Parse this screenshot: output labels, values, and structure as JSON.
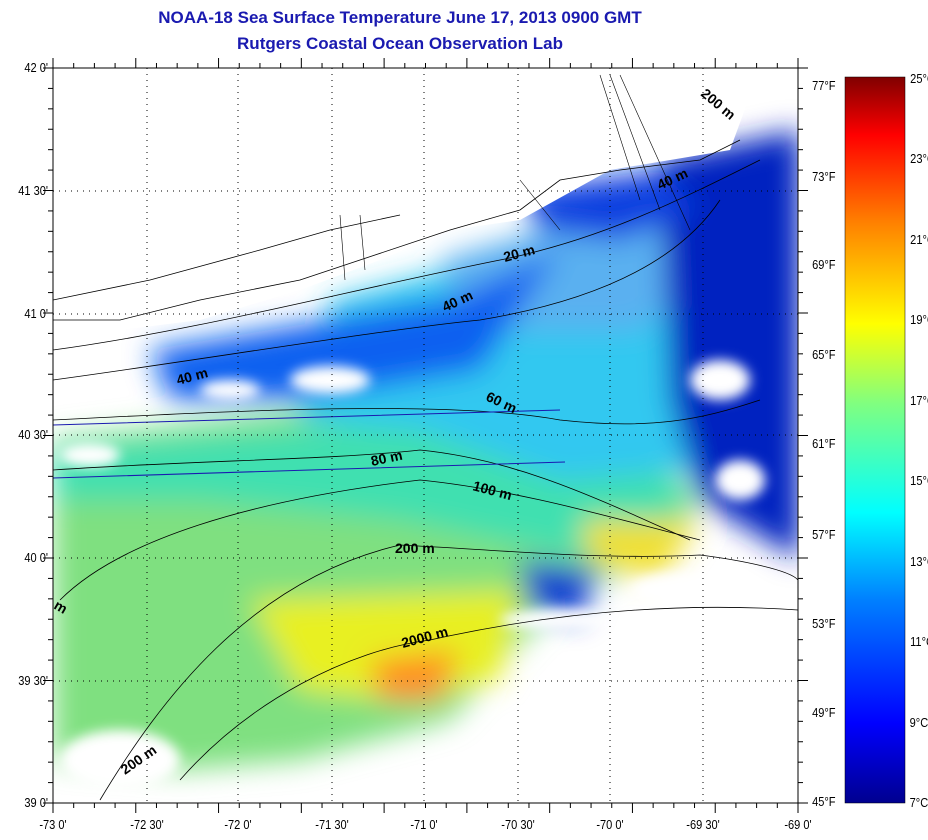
{
  "title": "NOAA-18 Sea Surface Temperature June 17, 2013 0900 GMT",
  "subtitle": "Rutgers Coastal Ocean Observation Lab",
  "lat_labels": [
    "42 0'",
    "41 30'",
    "41 0'",
    "40 30'",
    "40 0'",
    "39 30'",
    "39 0'"
  ],
  "lon_labels": [
    "-73 0'",
    "-72 30'",
    "-72 0'",
    "-71 30'",
    "-71 0'",
    "-70 30'",
    "-70 0'",
    "-69 30'",
    "-69 0'"
  ],
  "fahrenheit_labels": [
    "77°F",
    "73°F",
    "69°F",
    "65°F",
    "61°F",
    "57°F",
    "53°F",
    "49°F",
    "45°F"
  ],
  "celsius_labels": [
    "25°C",
    "23°C",
    "21°C",
    "19°C",
    "17°C",
    "15°C",
    "13°C",
    "11°C",
    "9°C",
    "7°C"
  ],
  "contour_labels": [
    "200 m",
    "40 m",
    "20 m",
    "40 m",
    "40 m",
    "60 m",
    "80 m",
    "100 m",
    "200 m",
    "2000 m",
    "200 m",
    "m"
  ],
  "color_scale": {
    "min_c": 7,
    "max_c": 25,
    "min_f": 45,
    "max_f": 77
  },
  "colors": {
    "title": "#1a1ab0",
    "land": "#ffffff",
    "cloud": "#ffffff"
  }
}
